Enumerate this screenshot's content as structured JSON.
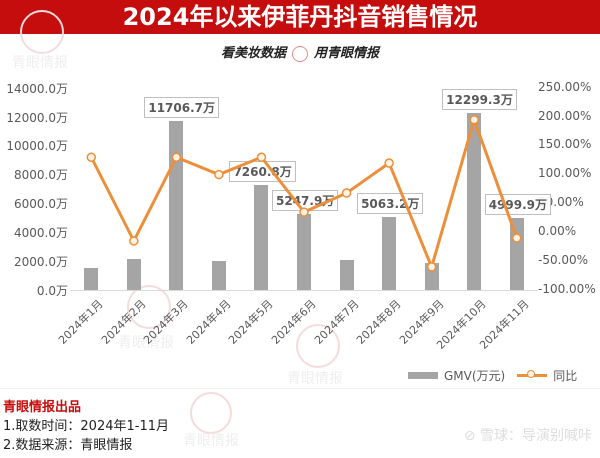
{
  "header": {
    "title": "2024年以来伊菲丹抖音销售情况"
  },
  "slogan": {
    "left": "看美妆数据",
    "right": "用青眼情报"
  },
  "watermark": {
    "text": "青眼情报"
  },
  "chart_data": {
    "type": "bar+line",
    "title": "2024年以来伊菲丹抖音销售情况",
    "categories": [
      "2024年1月",
      "2024年2月",
      "2024年3月",
      "2024年4月",
      "2024年5月",
      "2024年6月",
      "2024年7月",
      "2024年8月",
      "2024年9月",
      "2024年10月",
      "2024年11月"
    ],
    "series": [
      {
        "name": "GMV(万元)",
        "type": "bar",
        "axis": "left",
        "color": "#a5a5a5",
        "values": [
          1500,
          2150,
          11706.7,
          2000,
          7260.8,
          5247.9,
          2100,
          5063.2,
          1900,
          12299.3,
          4999.9
        ]
      },
      {
        "name": "同比",
        "type": "line",
        "axis": "right",
        "color": "#ed8f3a",
        "values": [
          130,
          -15,
          130,
          100,
          130,
          35,
          68,
          120,
          -60,
          195,
          -10
        ]
      }
    ],
    "data_labels": [
      {
        "index": 2,
        "text": "11706.7万"
      },
      {
        "index": 4,
        "text": "7260.8万"
      },
      {
        "index": 5,
        "text": "5247.9万"
      },
      {
        "index": 7,
        "text": "5063.2万"
      },
      {
        "index": 9,
        "text": "12299.3万"
      },
      {
        "index": 10,
        "text": "4999.9万"
      }
    ],
    "left_axis": {
      "ticks": [
        "14000.0万",
        "12000.0万",
        "10000.0万",
        "8000.0万",
        "6000.0万",
        "4000.0万",
        "2000.0万",
        "0.0万"
      ],
      "ylim": [
        0,
        14000
      ]
    },
    "right_axis": {
      "ticks": [
        "250.00%",
        "200.00%",
        "150.00%",
        "100.00%",
        "50.00%",
        "0.00%",
        "-50.00%",
        "-100.00%"
      ],
      "ylim": [
        -100,
        250
      ]
    },
    "legend": [
      "GMV(万元)",
      "同比"
    ],
    "legend_position": "bottom-right",
    "grid": false
  },
  "footer": {
    "brand": "青眼情报出品",
    "line1": "1.取数时间：2024年1-11月",
    "line2": "2.数据来源：青眼情报"
  },
  "xueqiu": {
    "text": "雪球：导演别喊咔"
  }
}
